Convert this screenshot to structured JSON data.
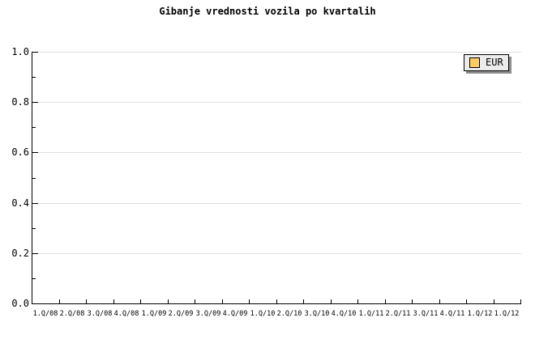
{
  "chart": {
    "title": "Gibanje vrednosti vozila po kvartalih",
    "legend": {
      "label": "EUR",
      "swatch_color": "#FDCB64",
      "background": "#ECECEC",
      "border_color": "#000000",
      "shadow_color": "#8C8C8C"
    }
  },
  "chart_data": {
    "type": "bar",
    "title": "Gibanje vrednosti vozila po kvartalih",
    "categories": [
      "1.Q/08",
      "2.Q/08",
      "3.Q/08",
      "4.Q/08",
      "1.Q/09",
      "2.Q/09",
      "3.Q/09",
      "4.Q/09",
      "1.Q/10",
      "2.Q/10",
      "3.Q/10",
      "4.Q/10",
      "1.Q/11",
      "2.Q/11",
      "3.Q/11",
      "4.Q/11",
      "1.Q/12",
      "1.Q/12"
    ],
    "series": [
      {
        "name": "EUR",
        "color": "#FDCB64",
        "values": []
      }
    ],
    "xlabel": "",
    "ylabel": "",
    "ylim": [
      0,
      1.0
    ],
    "yticks": [
      {
        "value": 0.0,
        "label": "0.0"
      },
      {
        "value": 0.2,
        "label": "0.2"
      },
      {
        "value": 0.4,
        "label": "0.4"
      },
      {
        "value": 0.6,
        "label": "0.6"
      },
      {
        "value": 0.8,
        "label": "0.8"
      },
      {
        "value": 1.0,
        "label": "1.0"
      }
    ],
    "minor_ytick_values": [
      0.1,
      0.3,
      0.5,
      0.7,
      0.9
    ],
    "grid": "horizontal-major-only",
    "legend_position": "top-right",
    "plot_background": "#FFFFFF",
    "colors": {
      "grid": "#E0E0E0",
      "axis": "#000000",
      "text": "#000000",
      "background": "#FFFFFF"
    }
  }
}
